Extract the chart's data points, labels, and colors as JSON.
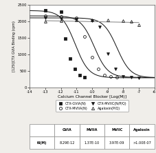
{
  "ylabel": "[125I]CTX GVIA Binding (cpm)",
  "xlabel": "Calcium Channel Blocker [Log(M)]",
  "xlim": [
    -14,
    -6
  ],
  "ylim": [
    0,
    2500
  ],
  "xticks": [
    -14,
    -13,
    -12,
    -11,
    -10,
    -9,
    -8,
    -7,
    -6
  ],
  "yticks": [
    0,
    500,
    1000,
    1500,
    2000,
    2500
  ],
  "series": [
    {
      "name": "CTX-GVIA(N)",
      "marker": "s",
      "fillstyle": "full",
      "ki_log": -11.08,
      "top": 2320,
      "bottom": 295,
      "x_data": [
        -13.0,
        -12.0,
        -11.7,
        -11.4,
        -11.1,
        -10.8,
        -10.5
      ],
      "y_data": [
        2320,
        2290,
        1480,
        870,
        560,
        380,
        305
      ]
    },
    {
      "name": "CTX-MVIIA(N)",
      "marker": "o",
      "fillstyle": "none",
      "ki_log": -9.86,
      "top": 2160,
      "bottom": 305,
      "x_data": [
        -13.0,
        -12.0,
        -11.0,
        -10.5,
        -10.0,
        -9.6,
        -9.2,
        -8.8,
        -8.4
      ],
      "y_data": [
        2160,
        2140,
        2100,
        1530,
        920,
        560,
        380,
        330,
        310
      ]
    },
    {
      "name": "CTX-MVIIC(N/P/Q)",
      "marker": "v",
      "fillstyle": "full",
      "ki_log": -8.4,
      "top": 2100,
      "bottom": 295,
      "x_data": [
        -13.0,
        -12.0,
        -11.0,
        -10.0,
        -9.5,
        -9.0,
        -8.5,
        -8.0,
        -7.5,
        -7.0
      ],
      "y_data": [
        2100,
        2080,
        2060,
        2020,
        1820,
        1020,
        560,
        340,
        305,
        300
      ]
    },
    {
      "name": "Agaloxin(P/Q)",
      "marker": "^",
      "fillstyle": "none",
      "ki_log": null,
      "top": null,
      "bottom": null,
      "x_data": [
        -13.0,
        -12.0,
        -11.0,
        -10.0,
        -9.0,
        -8.0,
        -7.5,
        -7.0
      ],
      "y_data": [
        2000,
        2020,
        2030,
        2040,
        2030,
        2020,
        2000,
        1890
      ]
    }
  ],
  "legend": [
    {
      "label": "CTX-GVIA(N)",
      "marker": "s",
      "fill": true
    },
    {
      "label": "CTX-MVIIA(N)",
      "marker": "o",
      "fill": false
    },
    {
      "label": "CTX-MVIIC(N/P/Q)",
      "marker": "v",
      "fill": true
    },
    {
      "label": "Agaloxin(P/Q)",
      "marker": "^",
      "fill": false
    }
  ],
  "table_cols": [
    "",
    "GVIA",
    "MVIIA",
    "MVIIC",
    "Agaloxin"
  ],
  "table_row": [
    "Ki(M)",
    "8.29E-12",
    "1.37E-10",
    "3.97E-09",
    ">1.00E-07"
  ],
  "color": "#1a1a1a",
  "bg_color": "#f0eeea"
}
